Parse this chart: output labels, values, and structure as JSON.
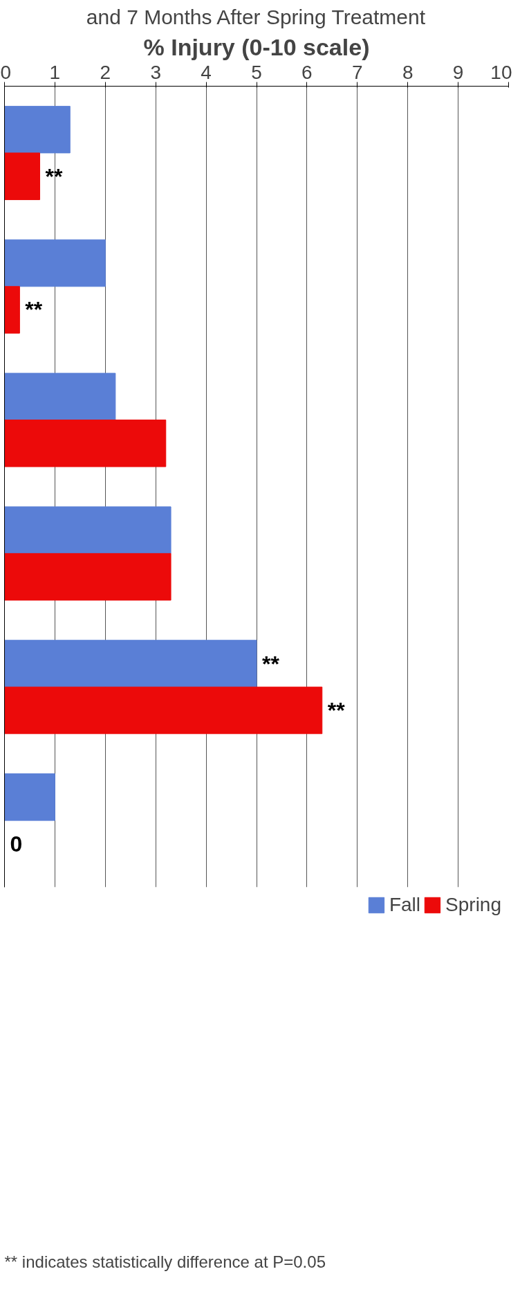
{
  "chart_data": {
    "type": "bar",
    "orientation": "horizontal",
    "title": "and 7 Months After Spring Treatment",
    "xlabel": "% Injury (0-10 scale)",
    "categories": [
      null,
      null,
      null,
      null,
      null,
      null
    ],
    "series": [
      {
        "name": "Fall",
        "color": "#5a7fd6",
        "values": [
          1.3,
          2.0,
          2.2,
          3.3,
          5.0,
          1.0
        ],
        "value_labels": [
          null,
          null,
          null,
          null,
          "**",
          null
        ]
      },
      {
        "name": "Spring",
        "color": "#ec0a0a",
        "values": [
          0.7,
          0.3,
          3.2,
          3.3,
          6.3,
          0
        ],
        "value_labels": [
          "**",
          "**",
          null,
          null,
          "**",
          "0"
        ]
      }
    ],
    "xlim": [
      0,
      10
    ],
    "xticks": [
      0,
      1,
      2,
      3,
      4,
      5,
      6,
      7,
      8,
      9,
      10
    ],
    "grid": "x",
    "legend": "bottom",
    "annotations": [
      "** indicates statistically difference at P=0.05"
    ]
  }
}
